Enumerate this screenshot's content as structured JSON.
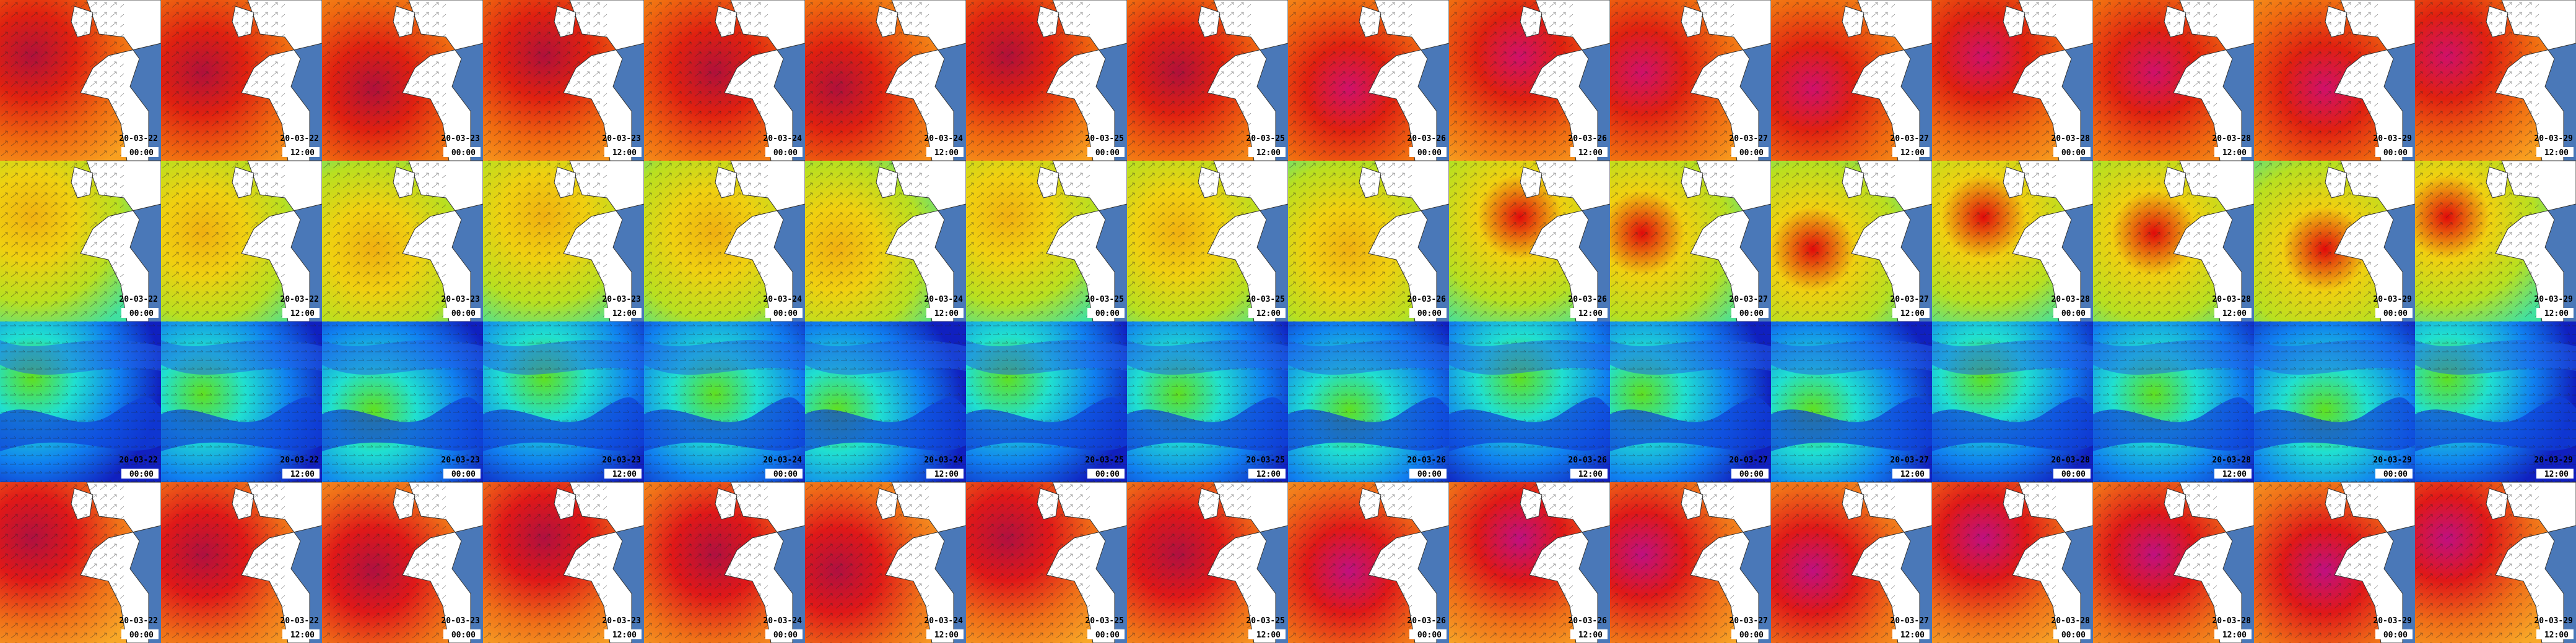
{
  "columns": [
    {
      "date": "20-03-22",
      "time": "00:00"
    },
    {
      "date": "20-03-22",
      "time": "12:00"
    },
    {
      "date": "20-03-23",
      "time": "00:00"
    },
    {
      "date": "20-03-23",
      "time": "12:00"
    },
    {
      "date": "20-03-24",
      "time": "00:00"
    },
    {
      "date": "20-03-24",
      "time": "12:00"
    },
    {
      "date": "20-03-25",
      "time": "00:00"
    },
    {
      "date": "20-03-25",
      "time": "12:00"
    },
    {
      "date": "20-03-26",
      "time": "00:00"
    },
    {
      "date": "20-03-26",
      "time": "12:00"
    },
    {
      "date": "20-03-27",
      "time": "00:00"
    },
    {
      "date": "20-03-27",
      "time": "12:00"
    },
    {
      "date": "20-03-28",
      "time": "00:00"
    },
    {
      "date": "20-03-28",
      "time": "12:00"
    },
    {
      "date": "20-03-29",
      "time": "00:00"
    },
    {
      "date": "20-03-29",
      "time": "12:00"
    }
  ]
}
